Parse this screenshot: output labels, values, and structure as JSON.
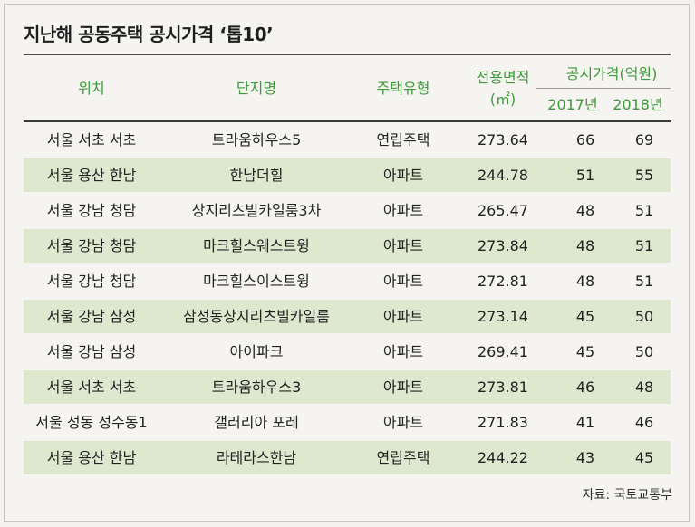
{
  "title": "지난해 공동주택 공시가격 ‘톱10’",
  "headers": {
    "location": "위치",
    "complex": "단지명",
    "type": "주택유형",
    "area_line1": "전용면적",
    "area_line2": "(㎡)",
    "price": "공시가격(억원)",
    "y2017": "2017년",
    "y2018": "2018년"
  },
  "rows": [
    {
      "location": "서울 서초 서초",
      "complex": "트라움하우스5",
      "type": "연립주택",
      "area": "273.64",
      "y2017": "66",
      "y2018": "69"
    },
    {
      "location": "서울 용산 한남",
      "complex": "한남더힐",
      "type": "아파트",
      "area": "244.78",
      "y2017": "51",
      "y2018": "55"
    },
    {
      "location": "서울 강남 청담",
      "complex": "상지리츠빌카일룸3차",
      "type": "아파트",
      "area": "265.47",
      "y2017": "48",
      "y2018": "51"
    },
    {
      "location": "서울 강남 청담",
      "complex": "마크힐스웨스트윙",
      "type": "아파트",
      "area": "273.84",
      "y2017": "48",
      "y2018": "51"
    },
    {
      "location": "서울 강남 청담",
      "complex": "마크힐스이스트윙",
      "type": "아파트",
      "area": "272.81",
      "y2017": "48",
      "y2018": "51"
    },
    {
      "location": "서울 강남 삼성",
      "complex": "삼성동상지리츠빌카일룸",
      "type": "아파트",
      "area": "273.14",
      "y2017": "45",
      "y2018": "50"
    },
    {
      "location": "서울 강남 삼성",
      "complex": "아이파크",
      "type": "아파트",
      "area": "269.41",
      "y2017": "45",
      "y2018": "50"
    },
    {
      "location": "서울 서초 서초",
      "complex": "트라움하우스3",
      "type": "아파트",
      "area": "273.81",
      "y2017": "46",
      "y2018": "48"
    },
    {
      "location": "서울 성동 성수동1",
      "complex": "갤러리아 포레",
      "type": "아파트",
      "area": "271.83",
      "y2017": "41",
      "y2018": "46"
    },
    {
      "location": "서울 용산 한남",
      "complex": "라테라스한남",
      "type": "연립주택",
      "area": "244.22",
      "y2017": "43",
      "y2018": "45"
    }
  ],
  "source": "자료: 국토교통부",
  "colors": {
    "header_text": "#3f9a3b",
    "alt_row": "#dde8cf",
    "background": "#f5f4f0"
  }
}
